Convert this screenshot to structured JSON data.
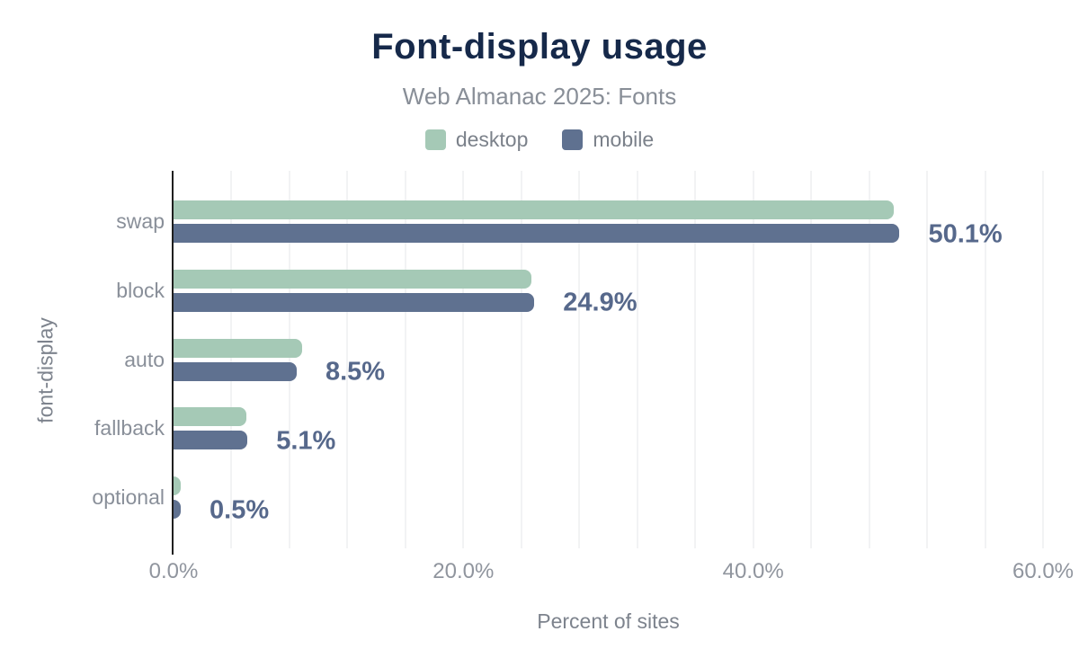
{
  "title": "Font-display usage",
  "subtitle": "Web Almanac 2025: Fonts",
  "colors": {
    "title": "#16294a",
    "subtitle": "#888e97",
    "desktop": "#a5c9b6",
    "mobile": "#5f7190",
    "value_label": "#56688b",
    "axis_text": "#90959e",
    "gridline": "#f2f3f4",
    "axis_line": "#1f1f1f"
  },
  "chart_data": {
    "type": "bar",
    "orientation": "horizontal",
    "title": "Font-display usage",
    "subtitle": "Web Almanac 2025: Fonts",
    "categories": [
      "swap",
      "block",
      "auto",
      "fallback",
      "optional"
    ],
    "series": [
      {
        "name": "desktop",
        "color": "#a5c9b6",
        "values": [
          49.7,
          24.7,
          8.9,
          5.0,
          0.5
        ]
      },
      {
        "name": "mobile",
        "color": "#5f7190",
        "values": [
          50.1,
          24.9,
          8.5,
          5.1,
          0.5
        ]
      }
    ],
    "value_labels": [
      "50.1%",
      "24.9%",
      "8.5%",
      "5.1%",
      "0.5%"
    ],
    "xlabel": "Percent of sites",
    "ylabel": "font-display",
    "x_ticks": [
      "0.0%",
      "20.0%",
      "40.0%",
      "60.0%"
    ],
    "x_tick_values": [
      0,
      20,
      40,
      60
    ],
    "xlim": [
      0,
      60
    ],
    "grid_minor_step": 4,
    "legend_position": "top",
    "grid": true
  }
}
